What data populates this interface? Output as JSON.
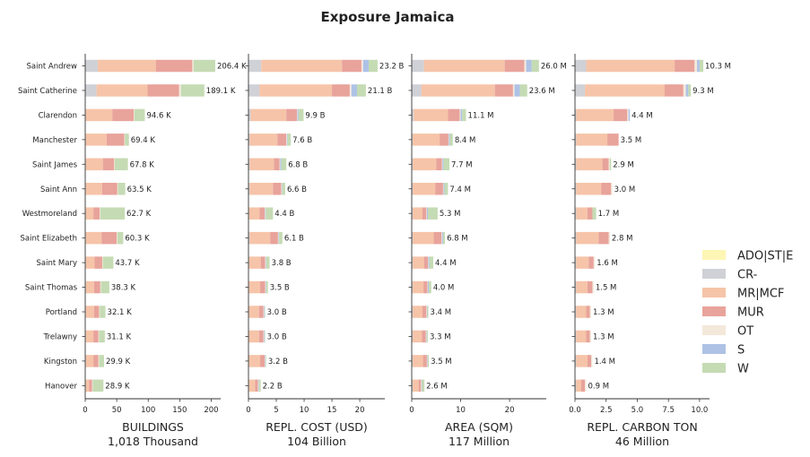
{
  "chart_data": {
    "type": "bar",
    "orientation": "horizontal",
    "stacked": true,
    "title": "Exposure Jamaica",
    "categories": [
      "Saint Andrew",
      "Saint Catherine",
      "Clarendon",
      "Manchester",
      "Saint James",
      "Saint Ann",
      "Westmoreland",
      "Saint Elizabeth",
      "Saint Mary",
      "Saint Thomas",
      "Portland",
      "Trelawny",
      "Kingston",
      "Hanover"
    ],
    "legend": {
      "placement": "right",
      "entries": [
        {
          "name": "ADO|ST|E",
          "color": "#fef6b5"
        },
        {
          "name": "CR-",
          "color": "#d0d1d6"
        },
        {
          "name": "MR|MCF",
          "color": "#f6c4a8"
        },
        {
          "name": "MUR",
          "color": "#e8a39b"
        },
        {
          "name": "OT",
          "color": "#f3e8da"
        },
        {
          "name": "S",
          "color": "#aec2e6"
        },
        {
          "name": "W",
          "color": "#c5dbb4"
        }
      ]
    },
    "panels": [
      {
        "xlabel": "BUILDINGS",
        "xsublabel": "1,018 Thousand",
        "xlim": [
          0,
          215
        ],
        "ticks": [
          0,
          50,
          100,
          150,
          200
        ],
        "tick_labels": [
          "0",
          "50",
          "100",
          "150",
          "200"
        ],
        "value_labels": [
          "206.4 K",
          "189.1 K",
          "94.6 K",
          "69.4 K",
          "67.8 K",
          "63.5 K",
          "62.7 K",
          "60.3 K",
          "43.7 K",
          "38.3 K",
          "32.1 K",
          "31.1 K",
          "29.9 K",
          "28.9 K"
        ],
        "segments": [
          [
            0,
            20,
            92,
            58,
            2,
            0,
            34.4
          ],
          [
            0,
            18,
            81,
            50,
            3,
            0,
            37.1
          ],
          [
            0,
            1,
            42,
            34,
            1,
            0,
            16.6
          ],
          [
            0,
            1,
            33,
            28,
            1,
            0,
            6.4
          ],
          [
            0,
            1,
            27,
            18,
            1,
            0,
            20.8
          ],
          [
            0,
            1,
            26,
            24,
            1,
            0,
            11.5
          ],
          [
            0,
            1,
            12,
            10,
            1,
            0,
            38.7
          ],
          [
            0,
            1,
            25,
            24,
            1,
            0,
            9.3
          ],
          [
            0,
            1,
            14,
            12,
            1,
            0,
            16.7
          ],
          [
            0,
            1,
            13,
            10,
            1,
            0,
            13.3
          ],
          [
            0,
            1,
            13,
            8,
            1,
            0,
            9.1
          ],
          [
            0,
            1,
            12,
            8,
            1,
            0,
            9.1
          ],
          [
            0,
            1,
            12,
            8,
            1,
            0,
            7.9
          ],
          [
            0,
            1,
            5,
            5,
            1,
            0,
            16.9
          ]
        ]
      },
      {
        "xlabel": "REPL. COST (USD)",
        "xsublabel": "104 Billion",
        "xlim": [
          0,
          24.5
        ],
        "ticks": [
          0,
          5,
          10,
          15,
          20
        ],
        "tick_labels": [
          "0",
          "5",
          "10",
          "15",
          "20"
        ],
        "value_labels": [
          "23.2 B",
          "21.1 B",
          "9.9 B",
          "7.6 B",
          "6.8 B",
          "6.6 B",
          "4.4 B",
          "6.1 B",
          "3.8 B",
          "3.5 B",
          "3.0 B",
          "3.0 B",
          "3.2 B",
          "2.2 B"
        ],
        "segments": [
          [
            0,
            2.3,
            14.5,
            3.5,
            0.3,
            1.0,
            1.6
          ],
          [
            0,
            2.0,
            13.0,
            3.2,
            0.3,
            1.0,
            1.6
          ],
          [
            0,
            0.4,
            6.4,
            1.9,
            0.1,
            0.2,
            0.9
          ],
          [
            0,
            0.2,
            5.0,
            1.6,
            0.1,
            0.1,
            0.6
          ],
          [
            0,
            0.2,
            4.4,
            1.0,
            0.1,
            0.2,
            0.9
          ],
          [
            0,
            0.2,
            4.2,
            1.5,
            0.1,
            0.1,
            0.5
          ],
          [
            0,
            0.1,
            1.9,
            0.9,
            0.1,
            0.1,
            1.3
          ],
          [
            0,
            0.2,
            3.7,
            1.4,
            0.1,
            0.1,
            0.6
          ],
          [
            0,
            0.1,
            2.1,
            0.8,
            0.1,
            0.1,
            0.6
          ],
          [
            0,
            0.1,
            2.0,
            0.9,
            0.1,
            0.1,
            0.3
          ],
          [
            0,
            0.1,
            1.8,
            0.8,
            0.1,
            0.1,
            0.1
          ],
          [
            0,
            0.1,
            1.8,
            0.8,
            0.1,
            0.1,
            0.1
          ],
          [
            0,
            0.1,
            2.0,
            0.8,
            0.1,
            0.1,
            0.1
          ],
          [
            0,
            0.1,
            1.1,
            0.5,
            0.1,
            0.1,
            0.3
          ]
        ]
      },
      {
        "xlabel": "AREA (SQM)",
        "xsublabel": "117 Million",
        "xlim": [
          0,
          27.5
        ],
        "ticks": [
          0,
          10,
          20
        ],
        "tick_labels": [
          "0",
          "10",
          "20"
        ],
        "value_labels": [
          "26.0 M",
          "23.6 M",
          "11.1 M",
          "8.4 M",
          "7.7 M",
          "7.4 M",
          "5.3 M",
          "6.8 M",
          "4.4 M",
          "4.0 M",
          "3.4 M",
          "3.3 M",
          "3.5 M",
          "2.6 M"
        ],
        "segments": [
          [
            0,
            2.5,
            16.5,
            4.0,
            0.4,
            1.1,
            1.5
          ],
          [
            0,
            2.0,
            15.0,
            3.7,
            0.3,
            1.1,
            1.5
          ],
          [
            0,
            0.4,
            7.0,
            2.4,
            0.2,
            0.3,
            0.8
          ],
          [
            0,
            0.2,
            5.5,
            1.8,
            0.1,
            0.2,
            0.6
          ],
          [
            0,
            0.2,
            4.8,
            1.2,
            0.1,
            0.2,
            1.2
          ],
          [
            0,
            0.2,
            4.6,
            1.6,
            0.1,
            0.2,
            0.7
          ],
          [
            0,
            0.2,
            2.0,
            0.8,
            0.1,
            0.2,
            2.0
          ],
          [
            0,
            0.2,
            4.3,
            1.6,
            0.1,
            0.2,
            0.4
          ],
          [
            0,
            0.2,
            2.3,
            0.8,
            0.1,
            0.2,
            0.8
          ],
          [
            0,
            0.2,
            2.2,
            0.8,
            0.1,
            0.2,
            0.5
          ],
          [
            0,
            0.2,
            2.0,
            0.8,
            0.1,
            0.1,
            0.2
          ],
          [
            0,
            0.2,
            1.9,
            0.8,
            0.1,
            0.1,
            0.2
          ],
          [
            0,
            0.2,
            2.1,
            0.8,
            0.1,
            0.1,
            0.2
          ],
          [
            0,
            0.2,
            1.2,
            0.5,
            0.1,
            0.1,
            0.5
          ]
        ]
      },
      {
        "xlabel": "REPL. CARBON TON",
        "xsublabel": "46 Million",
        "xlim": [
          0,
          10.8
        ],
        "ticks": [
          0,
          2.5,
          5,
          7.5,
          10
        ],
        "tick_labels": [
          "0.0",
          "2.5",
          "5.0",
          "7.5",
          "10.0"
        ],
        "value_labels": [
          "10.3 M",
          "9.3 M",
          "4.4 M",
          "3.5 M",
          "2.9 M",
          "3.0 M",
          "1.7 M",
          "2.8 M",
          "1.6 M",
          "1.5 M",
          "1.3 M",
          "1.3 M",
          "1.4 M",
          "0.9 M"
        ],
        "segments": [
          [
            0,
            0.9,
            7.1,
            1.6,
            0.2,
            0.2,
            0.3
          ],
          [
            0,
            0.8,
            6.4,
            1.5,
            0.2,
            0.2,
            0.2
          ],
          [
            0,
            0.1,
            3.0,
            1.1,
            0.1,
            0.1,
            0.0
          ],
          [
            0,
            0.1,
            2.5,
            0.9,
            0.0,
            0.0,
            0.0
          ],
          [
            0,
            0.1,
            2.1,
            0.5,
            0.1,
            0.0,
            0.1
          ],
          [
            0,
            0.1,
            2.0,
            0.8,
            0.1,
            0.0,
            0.0
          ],
          [
            0,
            0.1,
            0.9,
            0.4,
            0.0,
            0.0,
            0.3
          ],
          [
            0,
            0.1,
            1.8,
            0.8,
            0.1,
            0.0,
            0.0
          ],
          [
            0,
            0.1,
            1.0,
            0.4,
            0.1,
            0.0,
            0.0
          ],
          [
            0,
            0.1,
            0.9,
            0.4,
            0.1,
            0.0,
            0.0
          ],
          [
            0,
            0.1,
            0.8,
            0.3,
            0.1,
            0.0,
            0.0
          ],
          [
            0,
            0.1,
            0.8,
            0.3,
            0.1,
            0.0,
            0.0
          ],
          [
            0,
            0.1,
            0.9,
            0.3,
            0.1,
            0.0,
            0.0
          ],
          [
            0,
            0.1,
            0.4,
            0.3,
            0.1,
            0.0,
            0.0
          ]
        ]
      }
    ]
  }
}
